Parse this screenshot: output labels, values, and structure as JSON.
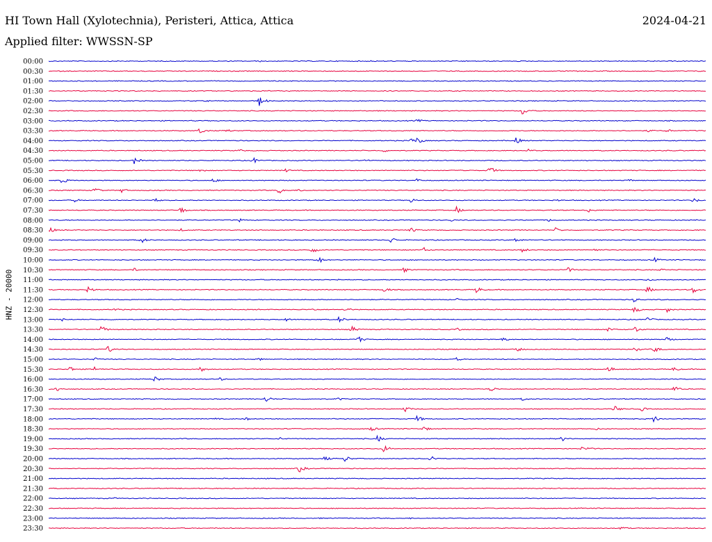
{
  "header": {
    "station": "HI Town Hall (Xylotechnia), Peristeri, Attica, Attica",
    "date": "2024-04-21",
    "filter_label": "Applied filter: WWSSN-SP"
  },
  "chart_data": {
    "type": "line",
    "title": "HI Town Hall (Xylotechnia), Peristeri, Attica, Attica",
    "ylabel": "HNZ - 20000",
    "series_colors": [
      "#0000cc",
      "#e6003c"
    ],
    "rows": [
      {
        "label": "00:00",
        "events": [
          [
            0.11,
            1
          ],
          [
            0.32,
            1
          ],
          [
            0.49,
            1
          ],
          [
            0.63,
            1
          ]
        ]
      },
      {
        "label": "00:30",
        "events": []
      },
      {
        "label": "01:00",
        "events": [
          [
            0.33,
            1
          ],
          [
            0.62,
            1
          ]
        ]
      },
      {
        "label": "01:30",
        "events": []
      },
      {
        "label": "02:00",
        "events": [
          [
            0.24,
            1
          ],
          [
            0.32,
            6
          ]
        ]
      },
      {
        "label": "02:30",
        "events": [
          [
            0.72,
            5
          ]
        ]
      },
      {
        "label": "03:00",
        "events": [
          [
            0.16,
            1
          ],
          [
            0.56,
            2
          ]
        ]
      },
      {
        "label": "03:30",
        "events": [
          [
            0.23,
            4
          ],
          [
            0.27,
            2
          ],
          [
            0.91,
            2
          ],
          [
            0.94,
            2
          ]
        ]
      },
      {
        "label": "04:00",
        "events": [
          [
            0.55,
            3
          ],
          [
            0.56,
            4
          ],
          [
            0.71,
            4
          ]
        ]
      },
      {
        "label": "04:30",
        "events": [
          [
            0.29,
            2
          ],
          [
            0.51,
            2
          ],
          [
            0.73,
            2
          ]
        ]
      },
      {
        "label": "05:00",
        "events": [
          [
            0.13,
            4
          ],
          [
            0.31,
            4
          ],
          [
            0.48,
            2
          ]
        ]
      },
      {
        "label": "05:30",
        "events": [
          [
            0.23,
            2
          ],
          [
            0.36,
            2
          ],
          [
            0.63,
            2
          ],
          [
            0.67,
            5
          ]
        ]
      },
      {
        "label": "06:00",
        "events": [
          [
            0.02,
            4
          ],
          [
            0.25,
            3
          ],
          [
            0.56,
            2
          ],
          [
            0.88,
            2
          ]
        ]
      },
      {
        "label": "06:30",
        "events": [
          [
            0.07,
            4
          ],
          [
            0.11,
            3
          ],
          [
            0.35,
            4
          ],
          [
            0.38,
            2
          ]
        ]
      },
      {
        "label": "07:00",
        "events": [
          [
            0.04,
            2
          ],
          [
            0.16,
            3
          ],
          [
            0.55,
            3
          ],
          [
            0.77,
            2
          ],
          [
            0.98,
            3
          ]
        ]
      },
      {
        "label": "07:30",
        "events": [
          [
            0.2,
            4
          ],
          [
            0.62,
            4
          ],
          [
            0.82,
            3
          ]
        ]
      },
      {
        "label": "08:00",
        "events": [
          [
            0.29,
            2
          ],
          [
            0.61,
            2
          ],
          [
            0.76,
            2
          ]
        ]
      },
      {
        "label": "08:30",
        "events": [
          [
            0.0,
            4
          ],
          [
            0.2,
            2
          ],
          [
            0.55,
            3
          ],
          [
            0.77,
            3
          ]
        ]
      },
      {
        "label": "09:00",
        "events": [
          [
            0.14,
            4
          ],
          [
            0.52,
            4
          ],
          [
            0.71,
            3
          ]
        ]
      },
      {
        "label": "09:30",
        "events": [
          [
            0.4,
            4
          ],
          [
            0.57,
            3
          ],
          [
            0.72,
            3
          ],
          [
            0.83,
            2
          ]
        ]
      },
      {
        "label": "10:00",
        "events": [
          [
            0.41,
            4
          ],
          [
            0.92,
            3
          ]
        ]
      },
      {
        "label": "10:30",
        "events": [
          [
            0.13,
            2
          ],
          [
            0.54,
            3
          ],
          [
            0.79,
            3
          ],
          [
            0.93,
            2
          ]
        ]
      },
      {
        "label": "11:00",
        "events": [
          [
            0.44,
            1
          ],
          [
            0.91,
            2
          ]
        ]
      },
      {
        "label": "11:30",
        "events": [
          [
            0.06,
            4
          ],
          [
            0.51,
            3
          ],
          [
            0.65,
            4
          ],
          [
            0.91,
            4
          ],
          [
            0.98,
            4
          ]
        ]
      },
      {
        "label": "12:00",
        "events": [
          [
            0.62,
            2
          ],
          [
            0.89,
            3
          ]
        ]
      },
      {
        "label": "12:30",
        "events": [
          [
            0.1,
            2
          ],
          [
            0.4,
            2
          ],
          [
            0.45,
            3
          ],
          [
            0.89,
            4
          ],
          [
            0.94,
            3
          ]
        ]
      },
      {
        "label": "13:00",
        "events": [
          [
            0.02,
            2
          ],
          [
            0.36,
            2
          ],
          [
            0.44,
            4
          ],
          [
            0.91,
            3
          ]
        ]
      },
      {
        "label": "13:30",
        "events": [
          [
            0.08,
            4
          ],
          [
            0.46,
            4
          ],
          [
            0.62,
            2
          ],
          [
            0.85,
            3
          ],
          [
            0.89,
            4
          ]
        ]
      },
      {
        "label": "14:00",
        "events": [
          [
            0.47,
            4
          ],
          [
            0.69,
            3
          ],
          [
            0.94,
            3
          ]
        ]
      },
      {
        "label": "14:30",
        "events": [
          [
            0.09,
            4
          ],
          [
            0.71,
            4
          ],
          [
            0.89,
            3
          ],
          [
            0.92,
            4
          ]
        ]
      },
      {
        "label": "15:00",
        "events": [
          [
            0.07,
            2
          ],
          [
            0.32,
            2
          ],
          [
            0.62,
            2
          ]
        ]
      },
      {
        "label": "15:30",
        "events": [
          [
            0.03,
            4
          ],
          [
            0.07,
            3
          ],
          [
            0.23,
            4
          ],
          [
            0.85,
            4
          ],
          [
            0.95,
            3
          ]
        ]
      },
      {
        "label": "16:00",
        "events": [
          [
            0.16,
            4
          ],
          [
            0.26,
            2
          ]
        ]
      },
      {
        "label": "16:30",
        "events": [
          [
            0.01,
            4
          ],
          [
            0.67,
            4
          ],
          [
            0.95,
            4
          ]
        ]
      },
      {
        "label": "17:00",
        "events": [
          [
            0.33,
            4
          ],
          [
            0.44,
            2
          ],
          [
            0.72,
            2
          ]
        ]
      },
      {
        "label": "17:30",
        "events": [
          [
            0.54,
            4
          ],
          [
            0.86,
            4
          ],
          [
            0.9,
            3
          ]
        ]
      },
      {
        "label": "18:00",
        "events": [
          [
            0.25,
            2
          ],
          [
            0.3,
            2
          ],
          [
            0.56,
            4
          ],
          [
            0.92,
            4
          ]
        ]
      },
      {
        "label": "18:30",
        "events": [
          [
            0.49,
            3
          ],
          [
            0.57,
            3
          ],
          [
            0.83,
            2
          ]
        ]
      },
      {
        "label": "19:00",
        "events": [
          [
            0.35,
            2
          ],
          [
            0.5,
            4
          ],
          [
            0.78,
            3
          ]
        ]
      },
      {
        "label": "19:30",
        "events": [
          [
            0.51,
            5
          ],
          [
            0.81,
            2
          ],
          [
            0.82,
            2
          ]
        ]
      },
      {
        "label": "20:00",
        "events": [
          [
            0.42,
            3
          ],
          [
            0.45,
            4
          ],
          [
            0.58,
            4
          ]
        ]
      },
      {
        "label": "20:30",
        "events": [
          [
            0.38,
            5
          ]
        ]
      },
      {
        "label": "21:00",
        "events": []
      },
      {
        "label": "21:30",
        "events": []
      },
      {
        "label": "22:00",
        "events": [
          [
            0.1,
            1
          ]
        ]
      },
      {
        "label": "22:30",
        "events": [
          [
            0.55,
            1
          ]
        ]
      },
      {
        "label": "23:00",
        "events": [
          [
            0.41,
            1
          ],
          [
            0.55,
            1
          ]
        ]
      },
      {
        "label": "23:30",
        "events": [
          [
            0.87,
            3
          ]
        ]
      }
    ]
  }
}
